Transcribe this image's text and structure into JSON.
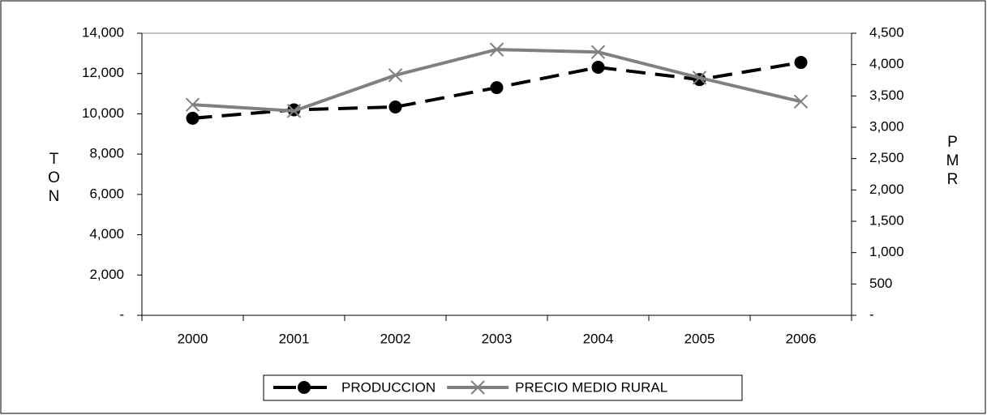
{
  "chart_data": {
    "type": "line",
    "categories": [
      "2000",
      "2001",
      "2002",
      "2003",
      "2004",
      "2005",
      "2006"
    ],
    "series": [
      {
        "name": "PRODUCCION",
        "color": "#000000",
        "axis": "y",
        "values": [
          9780,
          10200,
          10340,
          11300,
          12310,
          11700,
          12550
        ]
      },
      {
        "name": "PRECIO MEDIO RURAL",
        "color": "#808080",
        "axis": "y2",
        "values": [
          3360,
          3260,
          3830,
          4240,
          4200,
          3790,
          3410
        ]
      }
    ],
    "y_label": "TON",
    "y2_label": "PMR",
    "ylim": [
      0,
      14000
    ],
    "yticks": [
      {
        "value": 0,
        "label": "-"
      },
      {
        "value": 2000,
        "label": "2,000"
      },
      {
        "value": 4000,
        "label": "4,000"
      },
      {
        "value": 6000,
        "label": "6,000"
      },
      {
        "value": 8000,
        "label": "8,000"
      },
      {
        "value": 10000,
        "label": "10,000"
      },
      {
        "value": 12000,
        "label": "12,000"
      },
      {
        "value": 14000,
        "label": "14,000"
      }
    ],
    "y2lim": [
      0,
      4500
    ],
    "y2ticks": [
      {
        "value": 0,
        "label": "-"
      },
      500,
      {
        "value": 1000,
        "label": "1,000"
      },
      {
        "value": 1500,
        "label": "1,500"
      },
      {
        "value": 2000,
        "label": "2,000"
      },
      {
        "value": 2500,
        "label": "2,500"
      },
      {
        "value": 3000,
        "label": "3,000"
      },
      {
        "value": 3500,
        "label": "3,500"
      },
      {
        "value": 4000,
        "label": "4,000"
      },
      {
        "value": 4500,
        "label": "4,500"
      }
    ],
    "legend": "bottom"
  }
}
